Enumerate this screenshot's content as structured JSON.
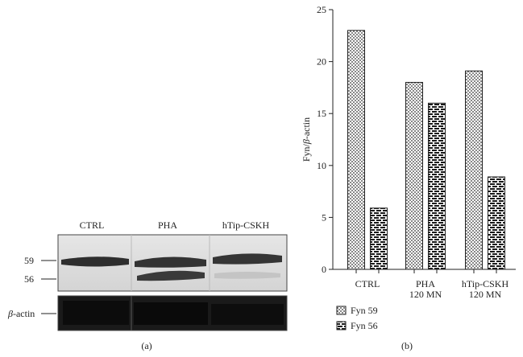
{
  "blot": {
    "lane_labels": [
      "CTRL",
      "PHA",
      "hTip-CSKH"
    ],
    "marker_59": "59",
    "marker_56": "56",
    "actin_label_italic": "β",
    "actin_label_rest": "-actin",
    "panel_label": "(a)"
  },
  "chart_data": {
    "type": "bar",
    "categories": [
      "CTRL",
      "PHA 120 MN",
      "hTip-CSKH 120 MN"
    ],
    "category_lines": [
      [
        "CTRL"
      ],
      [
        "PHA",
        "120 MN"
      ],
      [
        "hTip-CSKH",
        "120 MN"
      ]
    ],
    "series": [
      {
        "name": "Fyn 59",
        "values": [
          23,
          18,
          19.1
        ],
        "pattern": "dotted"
      },
      {
        "name": "Fyn 56",
        "values": [
          5.9,
          16,
          8.9
        ],
        "pattern": "brick"
      }
    ],
    "ylabel_parts": [
      "Fyn/",
      "β",
      "-actin"
    ],
    "ylim": [
      0,
      25
    ],
    "yticks": [
      0,
      5,
      10,
      15,
      20,
      25
    ],
    "grid": false,
    "legend_position": "bottom-left",
    "panel_label": "(b)"
  }
}
